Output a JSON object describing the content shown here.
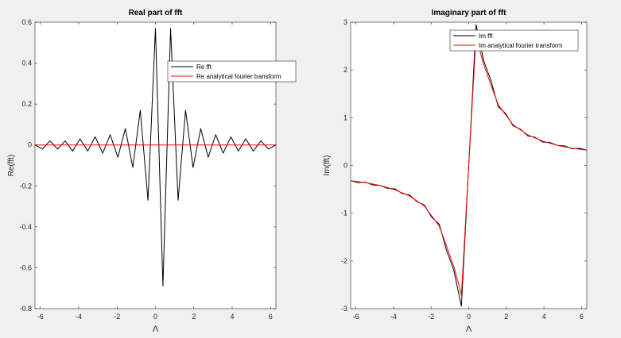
{
  "figure": {
    "background": "#f0f0f0"
  },
  "chart_data": [
    {
      "type": "line",
      "title": "Real part of fft",
      "xlabel": "Λ",
      "ylabel": "Re(fft)",
      "xlim": [
        -6.28,
        6.28
      ],
      "ylim": [
        -0.8,
        0.6
      ],
      "xticks": [
        -6,
        -4,
        -2,
        0,
        2,
        4,
        6
      ],
      "xtick_labels": [
        "-6",
        "-4",
        "-2",
        "0",
        "2",
        "4",
        "6"
      ],
      "yticks": [
        -0.8,
        -0.6,
        -0.4,
        -0.2,
        0,
        0.2,
        0.4,
        0.6
      ],
      "ytick_labels": [
        "-0.8",
        "-0.6",
        "-0.4",
        "-0.2",
        "0",
        "0.2",
        "0.4",
        "0.6"
      ],
      "grid": false,
      "legend_position": "top-right",
      "series": [
        {
          "name": "Re fft",
          "color": "#000000",
          "x": [
            -6.28,
            -5.89,
            -5.5,
            -5.1,
            -4.71,
            -4.32,
            -3.93,
            -3.53,
            -3.14,
            -2.75,
            -2.36,
            -1.96,
            -1.57,
            -1.18,
            -0.79,
            -0.39,
            0.0,
            0.39,
            0.79,
            1.18,
            1.57,
            1.96,
            2.36,
            2.75,
            3.14,
            3.53,
            3.93,
            4.32,
            4.71,
            5.1,
            5.5,
            5.89,
            6.28
          ],
          "y": [
            0.0,
            -0.02,
            0.02,
            -0.02,
            0.02,
            -0.03,
            0.03,
            -0.03,
            0.04,
            -0.04,
            0.05,
            -0.06,
            0.08,
            -0.11,
            0.17,
            -0.27,
            0.57,
            -0.69,
            0.57,
            -0.27,
            0.17,
            -0.11,
            0.08,
            -0.06,
            0.05,
            -0.04,
            0.04,
            -0.03,
            0.03,
            -0.03,
            0.02,
            -0.02,
            0.0
          ]
        },
        {
          "name": "Re analytical fourier transform",
          "color": "#ff0000",
          "x": [
            -6.28,
            6.28
          ],
          "y": [
            0.0,
            0.0
          ]
        }
      ]
    },
    {
      "type": "line",
      "title": "Imaginary part of fft",
      "xlabel": "Λ",
      "ylabel": "Im(fft)",
      "xlim": [
        -6.28,
        6.28
      ],
      "ylim": [
        -3,
        3
      ],
      "xticks": [
        -6,
        -4,
        -2,
        0,
        2,
        4,
        6
      ],
      "xtick_labels": [
        "-6",
        "-4",
        "-2",
        "0",
        "2",
        "4",
        "6"
      ],
      "yticks": [
        -3,
        -2,
        -1,
        0,
        1,
        2,
        3
      ],
      "ytick_labels": [
        "-3",
        "-2",
        "-1",
        "0",
        "1",
        "2",
        "3"
      ],
      "grid": false,
      "legend_position": "top-right",
      "series": [
        {
          "name": "Im fft",
          "color": "#000000",
          "x": [
            -6.28,
            -5.89,
            -5.5,
            -5.1,
            -4.71,
            -4.32,
            -3.93,
            -3.53,
            -3.14,
            -2.75,
            -2.36,
            -1.96,
            -1.57,
            -1.18,
            -0.79,
            -0.39,
            0.0,
            0.39,
            0.79,
            1.18,
            1.57,
            1.96,
            2.36,
            2.75,
            3.14,
            3.53,
            3.93,
            4.32,
            4.71,
            5.1,
            5.5,
            5.89,
            6.28
          ],
          "y": [
            -0.32,
            -0.36,
            -0.35,
            -0.41,
            -0.42,
            -0.48,
            -0.49,
            -0.59,
            -0.62,
            -0.76,
            -0.83,
            -1.09,
            -1.23,
            -1.78,
            -2.2,
            -2.95,
            0.0,
            2.95,
            2.2,
            1.78,
            1.23,
            1.09,
            0.83,
            0.76,
            0.62,
            0.59,
            0.49,
            0.48,
            0.42,
            0.41,
            0.35,
            0.36,
            0.32
          ]
        },
        {
          "name": "Im analytical fourier transform",
          "color": "#ff0000",
          "x": [
            -6.28,
            -5.5,
            -4.71,
            -3.93,
            -3.14,
            -2.36,
            -1.57,
            -1.18,
            -0.79,
            -0.5,
            -0.39,
            0.0,
            0.39,
            0.5,
            0.79,
            1.18,
            1.57,
            2.36,
            3.14,
            3.93,
            4.71,
            5.5,
            6.28
          ],
          "y": [
            -0.32,
            -0.36,
            -0.42,
            -0.51,
            -0.64,
            -0.85,
            -1.27,
            -1.69,
            -2.12,
            -2.54,
            -2.72,
            0.0,
            2.72,
            2.54,
            2.12,
            1.69,
            1.27,
            0.85,
            0.64,
            0.51,
            0.42,
            0.36,
            0.32
          ]
        }
      ]
    }
  ]
}
